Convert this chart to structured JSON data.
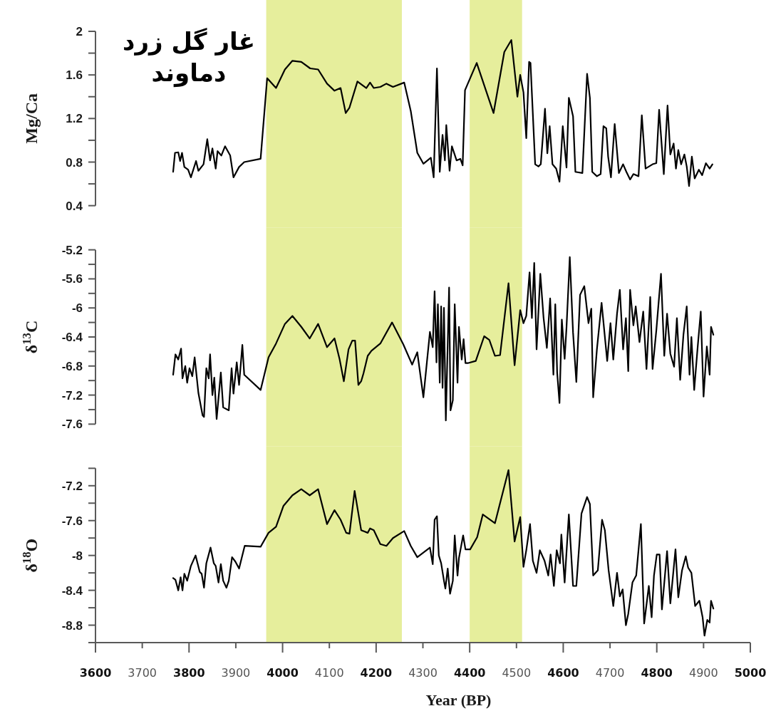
{
  "chart_data": [
    {
      "type": "line",
      "ylabel": "Mg/Ca",
      "color": "#000000",
      "xlim": [
        3600,
        5000
      ],
      "ylim": [
        0.4,
        2
      ],
      "tick_labels": "y",
      "yticks": [
        0.4,
        {
          "value": 0.6,
          "label": null
        },
        0.8,
        {
          "value": 1.0,
          "label": null
        },
        1.2,
        {
          "value": 1.4,
          "label": null
        },
        1.6,
        {
          "value": 1.8,
          "label": null
        },
        2
      ],
      "bands": [
        {
          "axis": "x",
          "from": 3965,
          "to": 4255,
          "color": "#e6ee9c"
        },
        {
          "axis": "x",
          "from": 4400,
          "to": 4512,
          "color": "#e6ee9c"
        }
      ],
      "annotations": [
        "غار گل زرد دماوند"
      ],
      "x": [
        3766,
        3770,
        3777,
        3781,
        3785,
        3790,
        3798,
        3804,
        3815,
        3820,
        3831,
        3839,
        3845,
        3850,
        3857,
        3861,
        3869,
        3877,
        3888,
        3895,
        3907,
        3918,
        3953,
        3967,
        3986,
        4005,
        4021,
        4040,
        4059,
        4076,
        4095,
        4111,
        4124,
        4135,
        4143,
        4160,
        4179,
        4187,
        4195,
        4209,
        4222,
        4236,
        4260,
        4274,
        4288,
        4301,
        4317,
        4323,
        4330,
        4336,
        4342,
        4347,
        4350,
        4357,
        4362,
        4372,
        4380,
        4385,
        4390,
        4415,
        4451,
        4474,
        4489,
        4502,
        4508,
        4515,
        4521,
        4527,
        4530,
        4540,
        4547,
        4552,
        4561,
        4566,
        4571,
        4577,
        4585,
        4592,
        4599,
        4607,
        4612,
        4621,
        4626,
        4641,
        4651,
        4657,
        4662,
        4672,
        4680,
        4686,
        4692,
        4696,
        4702,
        4710,
        4719,
        4728,
        4735,
        4743,
        4750,
        4761,
        4768,
        4776,
        4791,
        4799,
        4805,
        4815,
        4823,
        4829,
        4836,
        4841,
        4846,
        4852,
        4859,
        4864,
        4869,
        4875,
        4881,
        4890,
        4897,
        4905,
        4913,
        4919
      ],
      "values": [
        0.71,
        0.885,
        0.89,
        0.81,
        0.885,
        0.755,
        0.73,
        0.66,
        0.81,
        0.72,
        0.78,
        1.01,
        0.815,
        0.925,
        0.74,
        0.9,
        0.86,
        0.945,
        0.86,
        0.66,
        0.755,
        0.8,
        0.83,
        1.57,
        1.48,
        1.65,
        1.73,
        1.72,
        1.66,
        1.65,
        1.52,
        1.455,
        1.48,
        1.25,
        1.3,
        1.54,
        1.48,
        1.53,
        1.48,
        1.49,
        1.52,
        1.49,
        1.53,
        1.27,
        0.885,
        0.785,
        0.84,
        0.66,
        1.66,
        0.71,
        1.05,
        0.815,
        1.14,
        0.72,
        0.945,
        0.815,
        0.83,
        0.77,
        1.46,
        1.71,
        1.25,
        1.81,
        1.92,
        1.4,
        1.6,
        1.44,
        1.02,
        1.72,
        1.71,
        0.78,
        0.76,
        0.78,
        1.29,
        0.88,
        1.13,
        0.78,
        0.74,
        0.62,
        1.13,
        0.75,
        1.39,
        1.22,
        0.71,
        0.7,
        1.61,
        1.39,
        0.71,
        0.67,
        0.69,
        1.13,
        1.11,
        0.85,
        0.66,
        1.15,
        0.7,
        0.78,
        0.71,
        0.64,
        0.69,
        0.67,
        1.23,
        0.74,
        0.78,
        0.79,
        1.28,
        0.69,
        1.32,
        0.87,
        0.97,
        0.74,
        0.91,
        0.78,
        0.87,
        0.76,
        0.58,
        0.85,
        0.65,
        0.73,
        0.68,
        0.79,
        0.74,
        0.78
      ]
    },
    {
      "type": "line",
      "ylabel": "δ$^{13}$C",
      "color": "#000000",
      "xlim": [
        3600,
        5000
      ],
      "ylim": [
        -7.6,
        -5.2
      ],
      "tick_labels": "y",
      "yticks": [
        -7.6,
        {
          "value": -7.4,
          "label": null
        },
        -7.2,
        {
          "value": -7.0,
          "label": null
        },
        -6.8,
        {
          "value": -6.6,
          "label": null
        },
        -6.4,
        {
          "value": -6.2,
          "label": null
        },
        -6,
        {
          "value": -5.8,
          "label": null
        },
        -5.6,
        {
          "value": -5.4,
          "label": null
        },
        -5.2
      ],
      "bands": [
        {
          "axis": "x",
          "from": 3965,
          "to": 4255,
          "color": "#e6ee9c"
        },
        {
          "axis": "x",
          "from": 4400,
          "to": 4512,
          "color": "#e6ee9c"
        }
      ],
      "x": [
        3766,
        3771,
        3777,
        3783,
        3786,
        3792,
        3796,
        3801,
        3807,
        3812,
        3820,
        3829,
        3832,
        3837,
        3842,
        3845,
        3850,
        3854,
        3859,
        3868,
        3873,
        3885,
        3891,
        3895,
        3902,
        3907,
        3914,
        3918,
        3953,
        3970,
        3986,
        4005,
        4021,
        4040,
        4058,
        4076,
        4095,
        4111,
        4122,
        4131,
        4141,
        4149,
        4155,
        4162,
        4168,
        4173,
        4182,
        4190,
        4209,
        4234,
        4258,
        4277,
        4288,
        4301,
        4315,
        4321,
        4325,
        4329,
        4332,
        4336,
        4339,
        4342,
        4345,
        4349,
        4356,
        4359,
        4364,
        4368,
        4374,
        4377,
        4383,
        4387,
        4391,
        4396,
        4413,
        4431,
        4442,
        4454,
        4465,
        4483,
        4496,
        4508,
        4515,
        4521,
        4528,
        4533,
        4538,
        4543,
        4551,
        4558,
        4565,
        4572,
        4579,
        4583,
        4587,
        4592,
        4597,
        4603,
        4607,
        4614,
        4621,
        4628,
        4636,
        4645,
        4654,
        4660,
        4664,
        4672,
        4682,
        4694,
        4701,
        4707,
        4715,
        4721,
        4728,
        4734,
        4739,
        4743,
        4750,
        4755,
        4763,
        4771,
        4778,
        4786,
        4791,
        4799,
        4809,
        4816,
        4822,
        4829,
        4837,
        4843,
        4850,
        4857,
        4864,
        4870,
        4874,
        4880,
        4887,
        4894,
        4900,
        4907,
        4913,
        4916,
        4921
      ],
      "values": [
        -6.92,
        -6.64,
        -6.71,
        -6.56,
        -6.97,
        -6.8,
        -7.03,
        -6.83,
        -6.94,
        -6.68,
        -7.17,
        -7.48,
        -7.5,
        -6.83,
        -6.97,
        -6.64,
        -7.2,
        -6.96,
        -7.53,
        -6.89,
        -7.37,
        -7.41,
        -6.83,
        -7.18,
        -6.75,
        -7.06,
        -6.51,
        -6.92,
        -7.13,
        -6.68,
        -6.49,
        -6.22,
        -6.11,
        -6.26,
        -6.42,
        -6.22,
        -6.54,
        -6.42,
        -6.71,
        -7.01,
        -6.57,
        -6.45,
        -6.45,
        -7.06,
        -7.01,
        -6.9,
        -6.66,
        -6.59,
        -6.49,
        -6.2,
        -6.5,
        -6.78,
        -6.61,
        -7.23,
        -6.33,
        -6.54,
        -5.77,
        -6.75,
        -5.95,
        -7.03,
        -5.98,
        -7.1,
        -6.0,
        -7.55,
        -5.72,
        -7.41,
        -7.27,
        -5.95,
        -7.03,
        -6.26,
        -6.71,
        -6.43,
        -6.76,
        -6.76,
        -6.73,
        -6.39,
        -6.44,
        -6.66,
        -6.65,
        -5.66,
        -6.79,
        -6.03,
        -6.21,
        -6.11,
        -5.51,
        -6.14,
        -5.38,
        -6.57,
        -5.53,
        -6.14,
        -6.55,
        -5.87,
        -6.92,
        -5.95,
        -6.89,
        -7.31,
        -6.16,
        -6.7,
        -6.27,
        -5.3,
        -6.34,
        -7.02,
        -5.82,
        -5.7,
        -6.21,
        -6.01,
        -7.23,
        -6.57,
        -5.93,
        -6.73,
        -6.21,
        -6.71,
        -6.08,
        -5.75,
        -6.57,
        -6.14,
        -6.87,
        -5.75,
        -6.24,
        -5.98,
        -6.47,
        -6.05,
        -6.84,
        -5.85,
        -6.84,
        -6.31,
        -5.53,
        -6.66,
        -6.08,
        -6.63,
        -6.81,
        -6.14,
        -6.99,
        -6.37,
        -5.98,
        -6.92,
        -6.4,
        -7.13,
        -6.57,
        -6.05,
        -7.22,
        -6.53,
        -6.92,
        -6.26,
        -6.37
      ]
    },
    {
      "type": "line",
      "ylabel": "δ$^{18}$O",
      "xlabel": "Year (BP)",
      "color": "#000000",
      "xlim": [
        3600,
        5000
      ],
      "ylim": [
        -9,
        -7
      ],
      "xticks": [
        3600,
        3700,
        3800,
        3900,
        4000,
        4100,
        4200,
        4300,
        4400,
        4500,
        4600,
        4700,
        4800,
        4900,
        5000
      ],
      "yticks": [
        {
          "value": -9,
          "label": null
        },
        -8.8,
        {
          "value": -8.6,
          "label": null
        },
        -8.4,
        {
          "value": -8.2,
          "label": null
        },
        -8,
        {
          "value": -7.8,
          "label": null
        },
        -7.6,
        {
          "value": -7.4,
          "label": null
        },
        -7.2,
        {
          "value": -7,
          "label": null
        }
      ],
      "bands": [
        {
          "axis": "x",
          "from": 3965,
          "to": 4255,
          "color": "#e6ee9c"
        },
        {
          "axis": "x",
          "from": 4400,
          "to": 4512,
          "color": "#e6ee9c"
        }
      ],
      "x": [
        3766,
        3771,
        3777,
        3782,
        3786,
        3790,
        3796,
        3804,
        3814,
        3823,
        3827,
        3832,
        3837,
        3846,
        3853,
        3857,
        3863,
        3868,
        3873,
        3880,
        3885,
        3892,
        3899,
        3907,
        3919,
        3953,
        3970,
        3986,
        4002,
        4021,
        4040,
        4058,
        4076,
        4095,
        4111,
        4124,
        4136,
        4143,
        4154,
        4168,
        4182,
        4187,
        4195,
        4209,
        4222,
        4236,
        4260,
        4274,
        4288,
        4315,
        4321,
        4325,
        4330,
        4334,
        4339,
        4345,
        4348,
        4353,
        4358,
        4364,
        4368,
        4374,
        4377,
        4386,
        4391,
        4401,
        4416,
        4428,
        4454,
        4483,
        4496,
        4508,
        4515,
        4521,
        4529,
        4535,
        4543,
        4550,
        4560,
        4568,
        4573,
        4580,
        4586,
        4593,
        4596,
        4603,
        4612,
        4621,
        4628,
        4639,
        4651,
        4657,
        4664,
        4674,
        4683,
        4689,
        4697,
        4707,
        4715,
        4721,
        4727,
        4734,
        4739,
        4748,
        4756,
        4766,
        4773,
        4783,
        4789,
        4794,
        4800,
        4806,
        4811,
        4822,
        4829,
        4840,
        4846,
        4854,
        4862,
        4867,
        4874,
        4882,
        4891,
        4898,
        4902,
        4908,
        4913,
        4916,
        4921
      ],
      "values": [
        -8.26,
        -8.28,
        -8.4,
        -8.25,
        -8.4,
        -8.21,
        -8.29,
        -8.12,
        -8.0,
        -8.19,
        -8.21,
        -8.37,
        -8.09,
        -7.91,
        -8.09,
        -8.12,
        -8.31,
        -8.1,
        -8.29,
        -8.37,
        -8.29,
        -8.02,
        -8.07,
        -8.15,
        -7.89,
        -7.9,
        -7.74,
        -7.67,
        -7.43,
        -7.31,
        -7.24,
        -7.31,
        -7.24,
        -7.64,
        -7.48,
        -7.59,
        -7.74,
        -7.75,
        -7.26,
        -7.71,
        -7.74,
        -7.69,
        -7.71,
        -7.87,
        -7.89,
        -7.8,
        -7.72,
        -7.89,
        -8.02,
        -7.91,
        -8.1,
        -7.59,
        -7.55,
        -8.0,
        -8.09,
        -8.29,
        -8.38,
        -8.15,
        -8.44,
        -8.29,
        -7.77,
        -8.23,
        -8.03,
        -7.77,
        -7.93,
        -7.93,
        -7.79,
        -7.53,
        -7.63,
        -7.02,
        -7.84,
        -7.56,
        -8.13,
        -7.94,
        -7.64,
        -8.06,
        -8.2,
        -7.94,
        -8.06,
        -8.23,
        -7.99,
        -8.35,
        -7.94,
        -8.09,
        -7.76,
        -8.31,
        -7.53,
        -8.35,
        -8.35,
        -7.52,
        -7.33,
        -7.41,
        -8.23,
        -8.17,
        -7.59,
        -7.71,
        -8.17,
        -8.58,
        -8.2,
        -8.47,
        -8.39,
        -8.8,
        -8.67,
        -8.31,
        -8.23,
        -7.64,
        -8.78,
        -8.35,
        -8.71,
        -8.23,
        -7.99,
        -7.99,
        -8.62,
        -7.95,
        -8.55,
        -7.93,
        -8.48,
        -8.17,
        -8.01,
        -8.14,
        -8.2,
        -8.58,
        -8.52,
        -8.71,
        -8.92,
        -8.74,
        -8.77,
        -8.52,
        -8.61
      ]
    }
  ]
}
